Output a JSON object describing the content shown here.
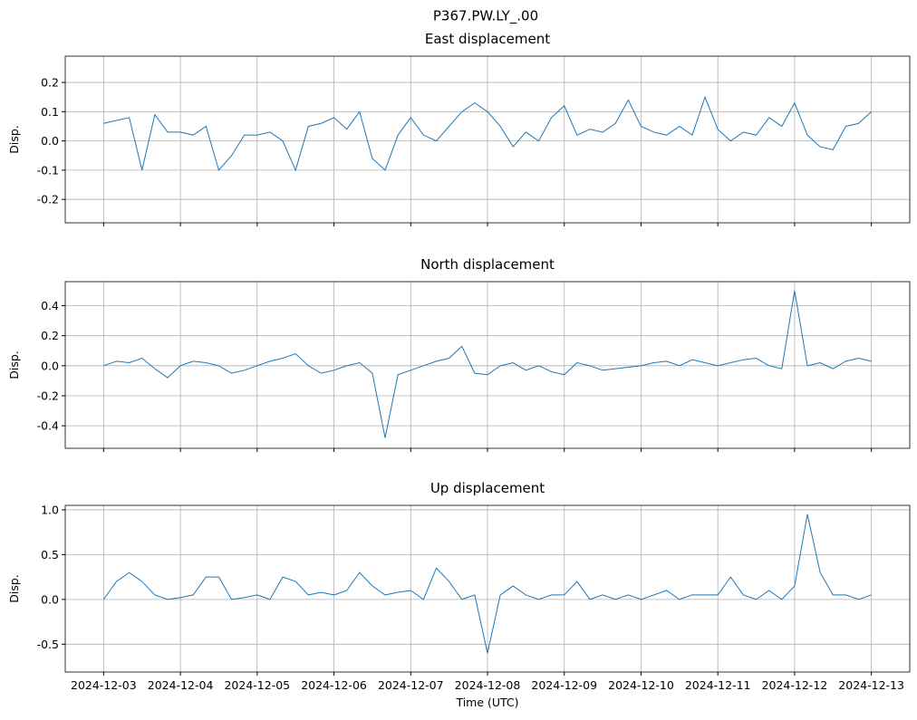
{
  "title": "P367.PW.LY_.00",
  "chart_data": [
    {
      "type": "line",
      "title": "East displacement",
      "y_label": "Disp.",
      "color": "#1f77b4",
      "grid": true,
      "xlim": [
        "2024-12-02T12:00",
        "2024-12-13T12:00"
      ],
      "xticks": [
        "2024-12-03",
        "2024-12-04",
        "2024-12-05",
        "2024-12-06",
        "2024-12-07",
        "2024-12-08",
        "2024-12-09",
        "2024-12-10",
        "2024-12-11",
        "2024-12-12",
        "2024-12-13"
      ],
      "ylim": [
        -0.28,
        0.29
      ],
      "yticks": [
        -0.2,
        -0.1,
        {
          "value": 0,
          "label": "0.0"
        },
        0.1,
        0.2
      ],
      "x": [
        "2024-12-03T00:00",
        "2024-12-03T04:00",
        "2024-12-03T08:00",
        "2024-12-03T12:00",
        "2024-12-03T16:00",
        "2024-12-03T20:00",
        "2024-12-04T00:00",
        "2024-12-04T04:00",
        "2024-12-04T08:00",
        "2024-12-04T12:00",
        "2024-12-04T16:00",
        "2024-12-04T20:00",
        "2024-12-05T00:00",
        "2024-12-05T04:00",
        "2024-12-05T08:00",
        "2024-12-05T12:00",
        "2024-12-05T16:00",
        "2024-12-05T20:00",
        "2024-12-06T00:00",
        "2024-12-06T04:00",
        "2024-12-06T08:00",
        "2024-12-06T12:00",
        "2024-12-06T16:00",
        "2024-12-06T20:00",
        "2024-12-07T00:00",
        "2024-12-07T04:00",
        "2024-12-07T08:00",
        "2024-12-07T12:00",
        "2024-12-07T16:00",
        "2024-12-07T20:00",
        "2024-12-08T00:00",
        "2024-12-08T04:00",
        "2024-12-08T08:00",
        "2024-12-08T12:00",
        "2024-12-08T16:00",
        "2024-12-08T20:00",
        "2024-12-09T00:00",
        "2024-12-09T04:00",
        "2024-12-09T08:00",
        "2024-12-09T12:00",
        "2024-12-09T16:00",
        "2024-12-09T20:00",
        "2024-12-10T00:00",
        "2024-12-10T04:00",
        "2024-12-10T08:00",
        "2024-12-10T12:00",
        "2024-12-10T16:00",
        "2024-12-10T20:00",
        "2024-12-11T00:00",
        "2024-12-11T04:00",
        "2024-12-11T08:00",
        "2024-12-11T12:00",
        "2024-12-11T16:00",
        "2024-12-11T20:00",
        "2024-12-12T00:00",
        "2024-12-12T04:00",
        "2024-12-12T08:00",
        "2024-12-12T12:00",
        "2024-12-12T16:00",
        "2024-12-12T20:00",
        "2024-12-13T00:00"
      ],
      "values": [
        0.06,
        0.07,
        0.08,
        -0.1,
        0.09,
        0.03,
        0.03,
        0.02,
        0.05,
        -0.1,
        -0.05,
        0.02,
        0.02,
        0.03,
        0.0,
        -0.1,
        0.05,
        0.06,
        0.08,
        0.04,
        0.1,
        -0.06,
        -0.1,
        0.02,
        0.08,
        0.02,
        0.0,
        0.05,
        0.1,
        0.13,
        0.1,
        0.05,
        -0.02,
        0.03,
        0.0,
        0.08,
        0.12,
        0.02,
        0.04,
        0.03,
        0.06,
        0.14,
        0.05,
        0.03,
        0.02,
        0.05,
        0.02,
        0.15,
        0.04,
        0.0,
        0.03,
        0.02,
        0.08,
        0.05,
        0.13,
        0.02,
        -0.02,
        -0.03,
        0.05,
        0.06,
        0.1
      ]
    },
    {
      "type": "line",
      "title": "North displacement",
      "y_label": "Disp.",
      "color": "#1f77b4",
      "grid": true,
      "xlim": [
        "2024-12-02T12:00",
        "2024-12-13T12:00"
      ],
      "xticks": [
        "2024-12-03",
        "2024-12-04",
        "2024-12-05",
        "2024-12-06",
        "2024-12-07",
        "2024-12-08",
        "2024-12-09",
        "2024-12-10",
        "2024-12-11",
        "2024-12-12",
        "2024-12-13"
      ],
      "ylim": [
        -0.55,
        0.56
      ],
      "yticks": [
        -0.4,
        -0.2,
        {
          "value": 0,
          "label": "0.0"
        },
        0.2,
        0.4
      ],
      "x": [
        "2024-12-03T00:00",
        "2024-12-03T04:00",
        "2024-12-03T08:00",
        "2024-12-03T12:00",
        "2024-12-03T16:00",
        "2024-12-03T20:00",
        "2024-12-04T00:00",
        "2024-12-04T04:00",
        "2024-12-04T08:00",
        "2024-12-04T12:00",
        "2024-12-04T16:00",
        "2024-12-04T20:00",
        "2024-12-05T00:00",
        "2024-12-05T04:00",
        "2024-12-05T08:00",
        "2024-12-05T12:00",
        "2024-12-05T16:00",
        "2024-12-05T20:00",
        "2024-12-06T00:00",
        "2024-12-06T04:00",
        "2024-12-06T08:00",
        "2024-12-06T12:00",
        "2024-12-06T16:00",
        "2024-12-06T20:00",
        "2024-12-07T00:00",
        "2024-12-07T04:00",
        "2024-12-07T08:00",
        "2024-12-07T12:00",
        "2024-12-07T16:00",
        "2024-12-07T20:00",
        "2024-12-08T00:00",
        "2024-12-08T04:00",
        "2024-12-08T08:00",
        "2024-12-08T12:00",
        "2024-12-08T16:00",
        "2024-12-08T20:00",
        "2024-12-09T00:00",
        "2024-12-09T04:00",
        "2024-12-09T08:00",
        "2024-12-09T12:00",
        "2024-12-09T16:00",
        "2024-12-09T20:00",
        "2024-12-10T00:00",
        "2024-12-10T04:00",
        "2024-12-10T08:00",
        "2024-12-10T12:00",
        "2024-12-10T16:00",
        "2024-12-10T20:00",
        "2024-12-11T00:00",
        "2024-12-11T04:00",
        "2024-12-11T08:00",
        "2024-12-11T12:00",
        "2024-12-11T16:00",
        "2024-12-11T20:00",
        "2024-12-12T00:00",
        "2024-12-12T04:00",
        "2024-12-12T08:00",
        "2024-12-12T12:00",
        "2024-12-12T16:00",
        "2024-12-12T20:00",
        "2024-12-13T00:00"
      ],
      "values": [
        0.0,
        0.03,
        0.02,
        0.05,
        -0.02,
        -0.08,
        0.0,
        0.03,
        0.02,
        0.0,
        -0.05,
        -0.03,
        0.0,
        0.03,
        0.05,
        0.08,
        0.0,
        -0.05,
        -0.03,
        0.0,
        0.02,
        -0.05,
        -0.48,
        -0.06,
        -0.03,
        0.0,
        0.03,
        0.05,
        0.13,
        -0.05,
        -0.06,
        0.0,
        0.02,
        -0.03,
        0.0,
        -0.04,
        -0.06,
        0.02,
        0.0,
        -0.03,
        -0.02,
        -0.01,
        0.0,
        0.02,
        0.03,
        0.0,
        0.04,
        0.02,
        0.0,
        0.02,
        0.04,
        0.05,
        0.0,
        -0.02,
        0.5,
        0.0,
        0.02,
        -0.02,
        0.03,
        0.05,
        0.03
      ]
    },
    {
      "type": "line",
      "title": "Up displacement",
      "y_label": "Disp.",
      "x_label": "Time (UTC)",
      "color": "#1f77b4",
      "grid": true,
      "xlim": [
        "2024-12-02T12:00",
        "2024-12-13T12:00"
      ],
      "xticks": [
        "2024-12-03",
        "2024-12-04",
        "2024-12-05",
        "2024-12-06",
        "2024-12-07",
        "2024-12-08",
        "2024-12-09",
        "2024-12-10",
        "2024-12-11",
        "2024-12-12",
        "2024-12-13"
      ],
      "ylim": [
        -0.81,
        1.05
      ],
      "yticks": [
        -0.5,
        {
          "value": 0,
          "label": "0.0"
        },
        0.5,
        {
          "value": 1,
          "label": "1.0"
        }
      ],
      "x": [
        "2024-12-03T00:00",
        "2024-12-03T04:00",
        "2024-12-03T08:00",
        "2024-12-03T12:00",
        "2024-12-03T16:00",
        "2024-12-03T20:00",
        "2024-12-04T00:00",
        "2024-12-04T04:00",
        "2024-12-04T08:00",
        "2024-12-04T12:00",
        "2024-12-04T16:00",
        "2024-12-04T20:00",
        "2024-12-05T00:00",
        "2024-12-05T04:00",
        "2024-12-05T08:00",
        "2024-12-05T12:00",
        "2024-12-05T16:00",
        "2024-12-05T20:00",
        "2024-12-06T00:00",
        "2024-12-06T04:00",
        "2024-12-06T08:00",
        "2024-12-06T12:00",
        "2024-12-06T16:00",
        "2024-12-06T20:00",
        "2024-12-07T00:00",
        "2024-12-07T04:00",
        "2024-12-07T08:00",
        "2024-12-07T12:00",
        "2024-12-07T16:00",
        "2024-12-07T20:00",
        "2024-12-08T00:00",
        "2024-12-08T04:00",
        "2024-12-08T08:00",
        "2024-12-08T12:00",
        "2024-12-08T16:00",
        "2024-12-08T20:00",
        "2024-12-09T00:00",
        "2024-12-09T04:00",
        "2024-12-09T08:00",
        "2024-12-09T12:00",
        "2024-12-09T16:00",
        "2024-12-09T20:00",
        "2024-12-10T00:00",
        "2024-12-10T04:00",
        "2024-12-10T08:00",
        "2024-12-10T12:00",
        "2024-12-10T16:00",
        "2024-12-10T20:00",
        "2024-12-11T00:00",
        "2024-12-11T04:00",
        "2024-12-11T08:00",
        "2024-12-11T12:00",
        "2024-12-11T16:00",
        "2024-12-11T20:00",
        "2024-12-12T00:00",
        "2024-12-12T04:00",
        "2024-12-12T08:00",
        "2024-12-12T12:00",
        "2024-12-12T16:00",
        "2024-12-12T20:00",
        "2024-12-13T00:00"
      ],
      "values": [
        0.0,
        0.2,
        0.3,
        0.2,
        0.05,
        0.0,
        0.02,
        0.05,
        0.25,
        0.25,
        0.0,
        0.02,
        0.05,
        0.0,
        0.25,
        0.2,
        0.05,
        0.08,
        0.05,
        0.1,
        0.3,
        0.15,
        0.05,
        0.08,
        0.1,
        0.0,
        0.35,
        0.2,
        0.0,
        0.05,
        -0.6,
        0.05,
        0.15,
        0.05,
        0.0,
        0.05,
        0.05,
        0.2,
        0.0,
        0.05,
        0.0,
        0.05,
        0.0,
        0.05,
        0.1,
        0.0,
        0.05,
        0.05,
        0.05,
        0.25,
        0.05,
        0.0,
        0.1,
        0.0,
        0.15,
        0.95,
        0.3,
        0.05,
        0.05,
        0.0,
        0.05
      ]
    }
  ]
}
